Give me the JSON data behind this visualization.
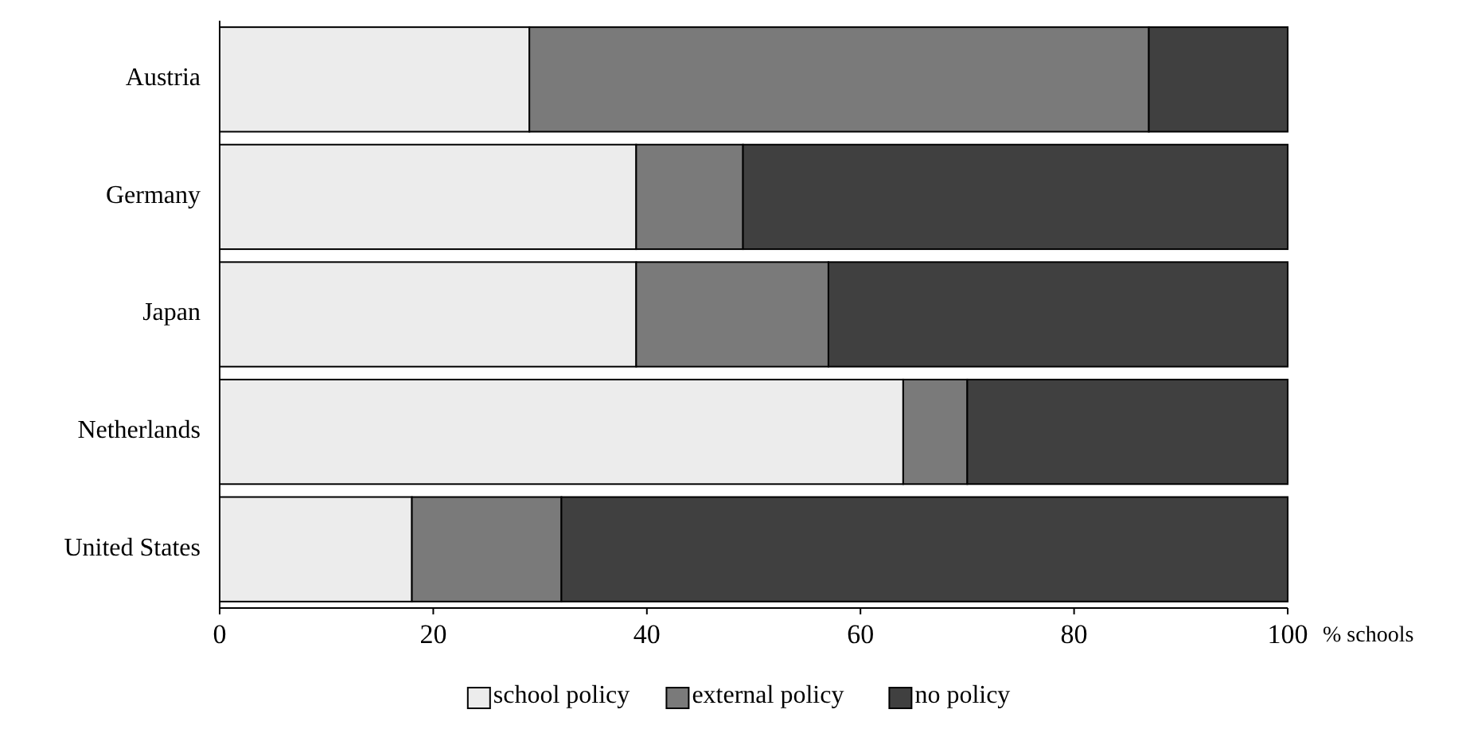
{
  "chart_data": {
    "type": "bar",
    "orientation": "horizontal",
    "stacked": true,
    "xlabel": "% schools",
    "categories": [
      "Austria",
      "Germany",
      "Japan",
      "Netherlands",
      "United States"
    ],
    "series": [
      {
        "name": "school policy",
        "color": "#ececec",
        "values": [
          29,
          39,
          39,
          64,
          18
        ]
      },
      {
        "name": "external policy",
        "color": "#7a7a7a",
        "values": [
          58,
          10,
          18,
          6,
          14
        ]
      },
      {
        "name": "no policy",
        "color": "#404040",
        "values": [
          13,
          51,
          43,
          30,
          68
        ]
      }
    ],
    "xlim": [
      0,
      100
    ],
    "xticks": [
      0,
      20,
      40,
      60,
      80,
      100
    ],
    "legend": "bottom",
    "grid": false
  }
}
